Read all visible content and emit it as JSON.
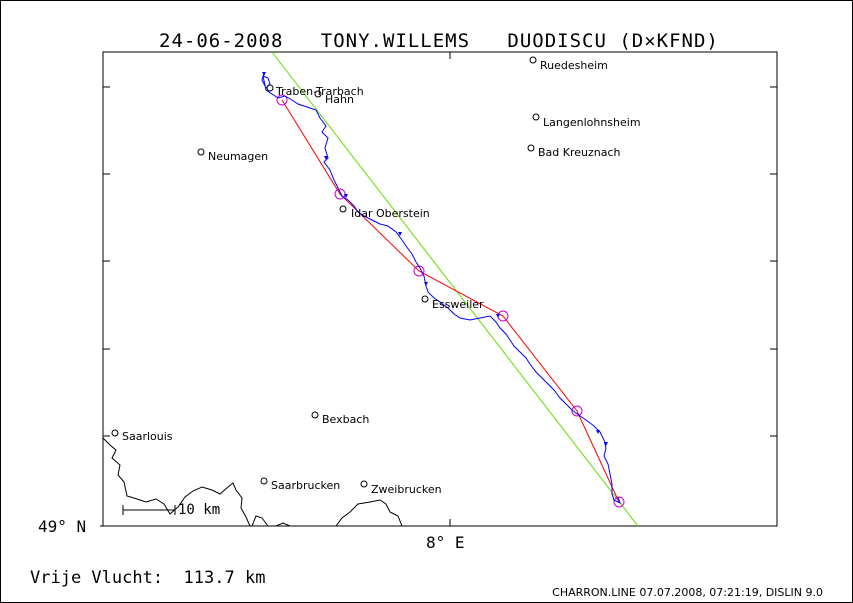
{
  "header": {
    "date": "24-06-2008",
    "pilot": "TONY.WILLEMS",
    "glider": "DUODISCU (D×KFND)"
  },
  "axes": {
    "y_label": "49° N",
    "x_label": "8° E"
  },
  "scale_bar": {
    "label": "10 km"
  },
  "places": [
    {
      "name": "Ruedesheim"
    },
    {
      "name": "Traben-Trarbach"
    },
    {
      "name": "Hahn"
    },
    {
      "name": "Langenlohnsheim"
    },
    {
      "name": "Bad Kreuznach"
    },
    {
      "name": "Neumagen"
    },
    {
      "name": "Idar Oberstein"
    },
    {
      "name": "Essweiler"
    },
    {
      "name": "Bexbach"
    },
    {
      "name": "Saarlouis"
    },
    {
      "name": "Saarbrucken"
    },
    {
      "name": "Zweibrucken"
    }
  ],
  "footer": {
    "distance_label": "Vrije Vlucht:",
    "distance_value": "113.7 km",
    "credit": "CHARRON.LINE 07.07.2008, 07:21:19, DISLIN 9.0"
  },
  "colors": {
    "track": "#0000ff",
    "task_line": "#ff0000",
    "reference_line": "#66dd00",
    "turnpoints": "#cc00cc",
    "border": "#000000"
  }
}
